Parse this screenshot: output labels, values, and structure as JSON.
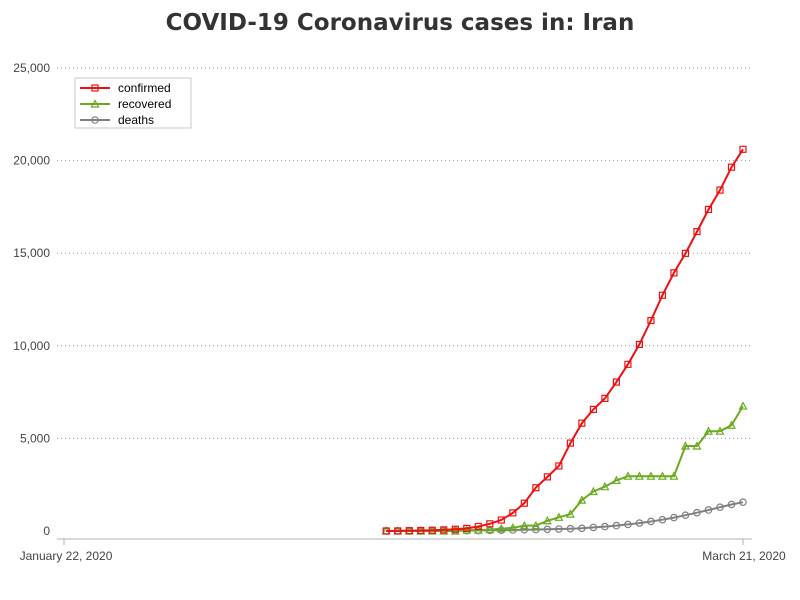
{
  "chart_data": {
    "type": "line",
    "title": "COVID-19 Coronavirus cases in: Iran",
    "xlabel": "",
    "ylabel": "",
    "x_tick_labels": [
      "January 22, 2020",
      "March 21, 2020"
    ],
    "x_range_days": [
      0,
      59
    ],
    "ylim": [
      0,
      25000
    ],
    "y_ticks": [
      0,
      5000,
      10000,
      15000,
      20000,
      25000
    ],
    "y_tick_labels": [
      "0",
      "5,000",
      "10,000",
      "15,000",
      "20,000",
      "25,000"
    ],
    "grid": "horizontal dotted",
    "legend_position": "top-left",
    "x": [
      28,
      29,
      30,
      31,
      32,
      33,
      34,
      35,
      36,
      37,
      38,
      39,
      40,
      41,
      42,
      43,
      44,
      45,
      46,
      47,
      48,
      49,
      50,
      51,
      52,
      53,
      54,
      55,
      56,
      57,
      58,
      59
    ],
    "series": [
      {
        "name": "confirmed",
        "color": "#ee1111",
        "marker": "square",
        "values": [
          2,
          5,
          18,
          28,
          43,
          61,
          95,
          139,
          245,
          388,
          593,
          978,
          1501,
          2336,
          2922,
          3513,
          4747,
          5823,
          6566,
          7161,
          8042,
          9000,
          10075,
          11364,
          12729,
          13938,
          14991,
          16169,
          17361,
          18407,
          19644,
          20610
        ]
      },
      {
        "name": "recovered",
        "color": "#6aaa1f",
        "marker": "triangle",
        "values": [
          0,
          0,
          0,
          0,
          0,
          0,
          0,
          49,
          49,
          73,
          123,
          175,
          291,
          291,
          552,
          739,
          913,
          1669,
          2134,
          2394,
          2731,
          2959,
          2959,
          2959,
          2959,
          2959,
          4590,
          4590,
          5389,
          5389,
          5710,
          6745
        ]
      },
      {
        "name": "deaths",
        "color": "#808080",
        "marker": "circle",
        "values": [
          2,
          2,
          4,
          5,
          8,
          12,
          16,
          19,
          26,
          34,
          43,
          54,
          66,
          77,
          92,
          107,
          124,
          145,
          194,
          237,
          291,
          354,
          429,
          514,
          611,
          724,
          853,
          988,
          1135,
          1284,
          1433,
          1556
        ]
      }
    ]
  }
}
